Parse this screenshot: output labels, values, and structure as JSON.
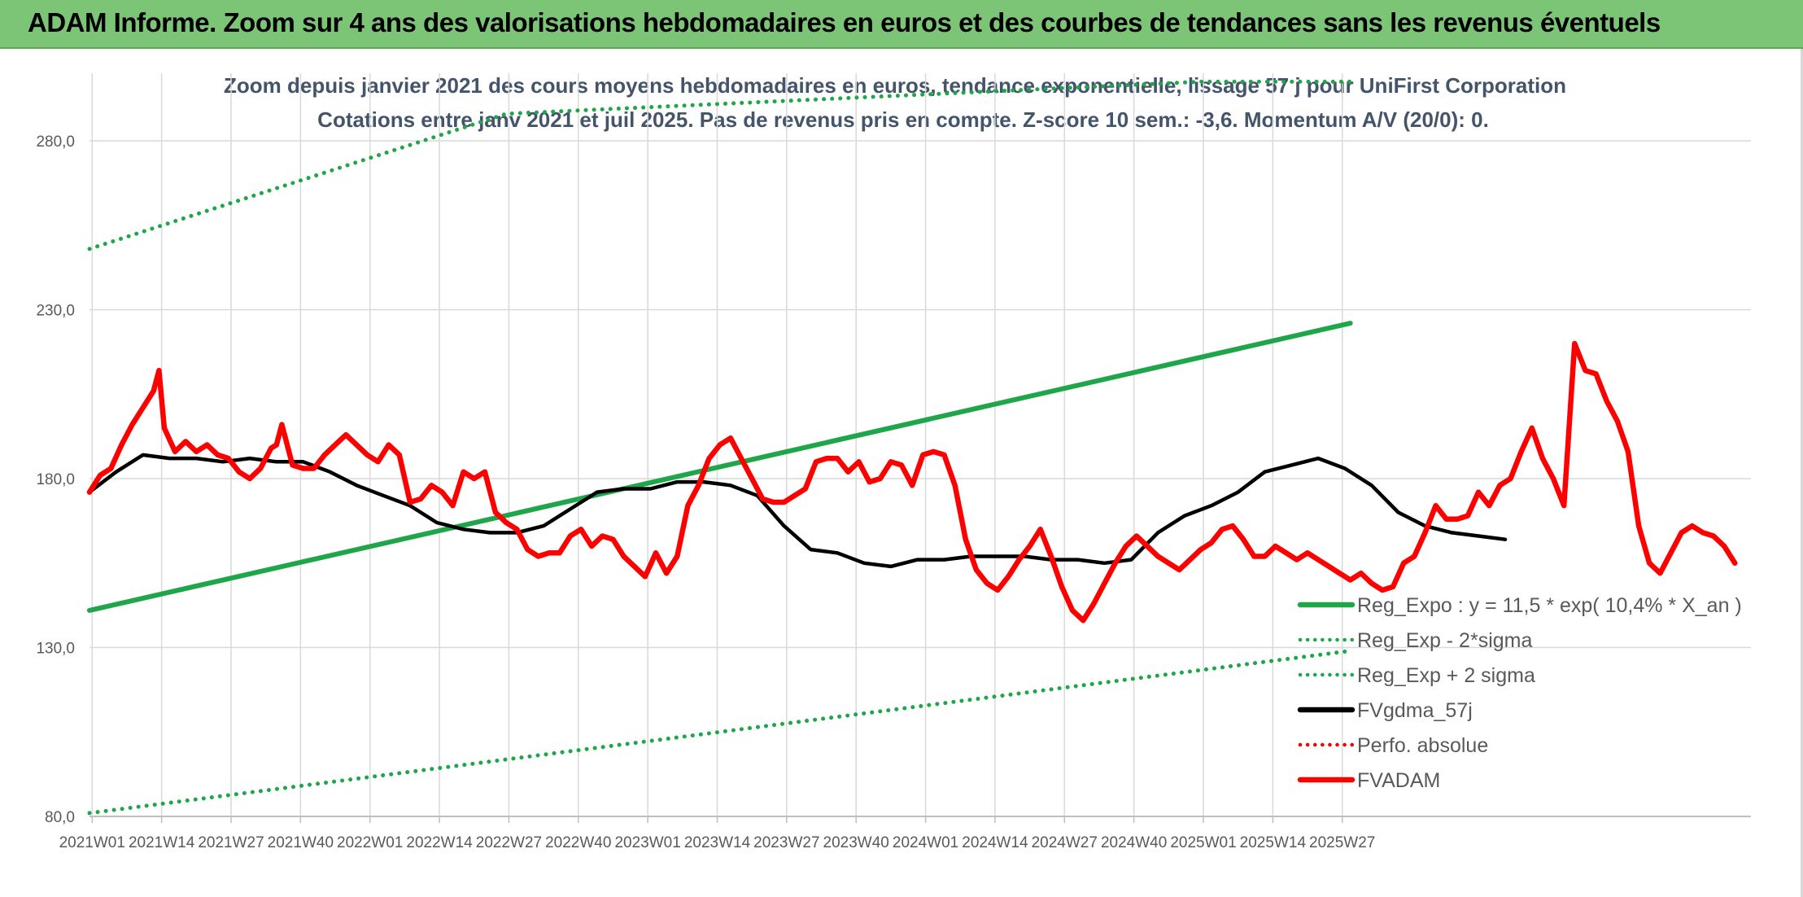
{
  "banner": {
    "title": "ADAM Informe. Zoom sur 4 ans des valorisations hebdomadaires en euros et des courbes de tendances sans les revenus éventuels"
  },
  "chart_data": {
    "type": "line",
    "title": "Zoom depuis janvier 2021 des cours moyens hebdomadaires en euros, tendance exponentielle, lissage 57 j pour UniFirst Corporation",
    "subtitle": "Cotations entre janv 2021 et juil 2025. Pas de revenus pris en compte. Z-score 10 sem.: -3,6. Momentum A/V (20/0): 0.",
    "xlabel": "",
    "ylabel": "",
    "ylim": [
      80,
      300
    ],
    "yticks": [
      80,
      130,
      180,
      230,
      280
    ],
    "ytick_labels": [
      "80,0",
      "130,0",
      "180,0",
      "230,0",
      "280,0"
    ],
    "xtick_labels": [
      "2021W01",
      "2021W14",
      "2021W27",
      "2021W40",
      "2022W01",
      "2022W14",
      "2022W27",
      "2022W40",
      "2023W01",
      "2023W14",
      "2023W27",
      "2023W40",
      "2024W01",
      "2024W14",
      "2024W27",
      "2024W40",
      "2025W01",
      "2025W14",
      "2025W27"
    ],
    "grid": true,
    "legend_position": "bottom-right",
    "series": [
      {
        "name": "Reg_Expo : y = 11,5 * exp( 10,4% *  X_an )",
        "color": "#1fa64a",
        "style": "solid",
        "points": [
          [
            0,
            141
          ],
          [
            236,
            226
          ]
        ]
      },
      {
        "name": "Reg_Exp - 2*sigma",
        "color": "#1fa64a",
        "style": "dotted",
        "points": [
          [
            0,
            81
          ],
          [
            236,
            129
          ]
        ]
      },
      {
        "name": "Reg_Exp + 2 sigma",
        "color": "#1fa64a",
        "style": "dotted",
        "points": [
          [
            0,
            248
          ],
          [
            78,
            288
          ],
          [
            208,
            297.5
          ],
          [
            236,
            297.5
          ]
        ]
      },
      {
        "name": "FVgdma_57j",
        "color": "#000000",
        "style": "solid",
        "points": [
          [
            0,
            176
          ],
          [
            5,
            182
          ],
          [
            10,
            187
          ],
          [
            15,
            186
          ],
          [
            20,
            186
          ],
          [
            25,
            185
          ],
          [
            30,
            186
          ],
          [
            35,
            185
          ],
          [
            40,
            185
          ],
          [
            45,
            182
          ],
          [
            50,
            178
          ],
          [
            55,
            175
          ],
          [
            60,
            172
          ],
          [
            65,
            167
          ],
          [
            70,
            165
          ],
          [
            75,
            164
          ],
          [
            80,
            164
          ],
          [
            85,
            166
          ],
          [
            90,
            171
          ],
          [
            95,
            176
          ],
          [
            100,
            177
          ],
          [
            105,
            177
          ],
          [
            110,
            179
          ],
          [
            115,
            179
          ],
          [
            120,
            178
          ],
          [
            125,
            175
          ],
          [
            130,
            166
          ],
          [
            135,
            159
          ],
          [
            140,
            158
          ],
          [
            145,
            155
          ],
          [
            150,
            154
          ],
          [
            155,
            156
          ],
          [
            160,
            156
          ],
          [
            165,
            157
          ],
          [
            170,
            157
          ],
          [
            175,
            157
          ],
          [
            180,
            156
          ],
          [
            185,
            156
          ],
          [
            190,
            155
          ],
          [
            195,
            156
          ],
          [
            200,
            164
          ],
          [
            205,
            169
          ],
          [
            210,
            172
          ],
          [
            215,
            176
          ],
          [
            220,
            182
          ],
          [
            225,
            184
          ],
          [
            230,
            186
          ],
          [
            235,
            183
          ],
          [
            240,
            178
          ],
          [
            245,
            170
          ],
          [
            250,
            166
          ],
          [
            255,
            164
          ],
          [
            260,
            163
          ],
          [
            265,
            162
          ]
        ]
      },
      {
        "name": "Perfo. absolue",
        "color": "#ff0000",
        "style": "dotted",
        "points": []
      },
      {
        "name": "FVADAM",
        "color": "#ff0000",
        "style": "solid",
        "points": [
          [
            0,
            176
          ],
          [
            2,
            181
          ],
          [
            4,
            183
          ],
          [
            6,
            190
          ],
          [
            8,
            196
          ],
          [
            10,
            201
          ],
          [
            12,
            206
          ],
          [
            13,
            212
          ],
          [
            14,
            195
          ],
          [
            16,
            188
          ],
          [
            18,
            191
          ],
          [
            20,
            188
          ],
          [
            22,
            190
          ],
          [
            24,
            187
          ],
          [
            26,
            186
          ],
          [
            28,
            182
          ],
          [
            30,
            180
          ],
          [
            32,
            183
          ],
          [
            34,
            189
          ],
          [
            35,
            190
          ],
          [
            36,
            196
          ],
          [
            38,
            184
          ],
          [
            40,
            183
          ],
          [
            42,
            183
          ],
          [
            44,
            187
          ],
          [
            46,
            190
          ],
          [
            48,
            193
          ],
          [
            50,
            190
          ],
          [
            52,
            187
          ],
          [
            54,
            185
          ],
          [
            56,
            190
          ],
          [
            58,
            187
          ],
          [
            60,
            173
          ],
          [
            62,
            174
          ],
          [
            64,
            178
          ],
          [
            66,
            176
          ],
          [
            68,
            172
          ],
          [
            70,
            182
          ],
          [
            72,
            180
          ],
          [
            74,
            182
          ],
          [
            76,
            170
          ],
          [
            78,
            167
          ],
          [
            80,
            165
          ],
          [
            82,
            159
          ],
          [
            84,
            157
          ],
          [
            86,
            158
          ],
          [
            88,
            158
          ],
          [
            90,
            163
          ],
          [
            92,
            165
          ],
          [
            94,
            160
          ],
          [
            96,
            163
          ],
          [
            98,
            162
          ],
          [
            100,
            157
          ],
          [
            102,
            154
          ],
          [
            104,
            151
          ],
          [
            106,
            158
          ],
          [
            108,
            152
          ],
          [
            110,
            157
          ],
          [
            112,
            172
          ],
          [
            114,
            178
          ],
          [
            116,
            186
          ],
          [
            118,
            190
          ],
          [
            120,
            192
          ],
          [
            122,
            186
          ],
          [
            124,
            180
          ],
          [
            126,
            174
          ],
          [
            128,
            173
          ],
          [
            130,
            173
          ],
          [
            132,
            175
          ],
          [
            134,
            177
          ],
          [
            136,
            185
          ],
          [
            138,
            186
          ],
          [
            140,
            186
          ],
          [
            142,
            182
          ],
          [
            144,
            185
          ],
          [
            146,
            179
          ],
          [
            148,
            180
          ],
          [
            150,
            185
          ],
          [
            152,
            184
          ],
          [
            154,
            178
          ],
          [
            156,
            187
          ],
          [
            158,
            188
          ],
          [
            160,
            187
          ],
          [
            162,
            178
          ],
          [
            164,
            162
          ],
          [
            166,
            153
          ],
          [
            168,
            149
          ],
          [
            170,
            147
          ],
          [
            172,
            151
          ],
          [
            174,
            156
          ],
          [
            176,
            160
          ],
          [
            178,
            165
          ],
          [
            180,
            157
          ],
          [
            182,
            148
          ],
          [
            184,
            141
          ],
          [
            186,
            138
          ],
          [
            188,
            143
          ],
          [
            190,
            149
          ],
          [
            192,
            155
          ],
          [
            194,
            160
          ],
          [
            196,
            163
          ],
          [
            198,
            160
          ],
          [
            200,
            157
          ],
          [
            202,
            155
          ],
          [
            204,
            153
          ],
          [
            206,
            156
          ],
          [
            208,
            159
          ],
          [
            210,
            161
          ],
          [
            212,
            165
          ],
          [
            214,
            166
          ],
          [
            216,
            162
          ],
          [
            218,
            157
          ],
          [
            220,
            157
          ],
          [
            222,
            160
          ],
          [
            224,
            158
          ],
          [
            226,
            156
          ],
          [
            228,
            158
          ],
          [
            230,
            156
          ],
          [
            232,
            154
          ],
          [
            234,
            152
          ],
          [
            236,
            150
          ],
          [
            238,
            152
          ],
          [
            240,
            149
          ],
          [
            242,
            147
          ],
          [
            244,
            148
          ],
          [
            246,
            155
          ],
          [
            248,
            157
          ],
          [
            250,
            164
          ],
          [
            252,
            172
          ],
          [
            254,
            168
          ],
          [
            256,
            168
          ],
          [
            258,
            169
          ],
          [
            260,
            176
          ],
          [
            262,
            172
          ],
          [
            264,
            178
          ],
          [
            266,
            180
          ],
          [
            268,
            188
          ],
          [
            270,
            195
          ],
          [
            272,
            186
          ],
          [
            274,
            180
          ],
          [
            276,
            172
          ],
          [
            278,
            220
          ],
          [
            280,
            212
          ],
          [
            282,
            211
          ],
          [
            284,
            203
          ],
          [
            286,
            197
          ],
          [
            288,
            188
          ],
          [
            290,
            166
          ],
          [
            292,
            155
          ],
          [
            294,
            152
          ],
          [
            296,
            158
          ],
          [
            298,
            164
          ],
          [
            300,
            166
          ],
          [
            302,
            164
          ],
          [
            304,
            163
          ],
          [
            306,
            160
          ],
          [
            308,
            155
          ]
        ]
      }
    ]
  }
}
